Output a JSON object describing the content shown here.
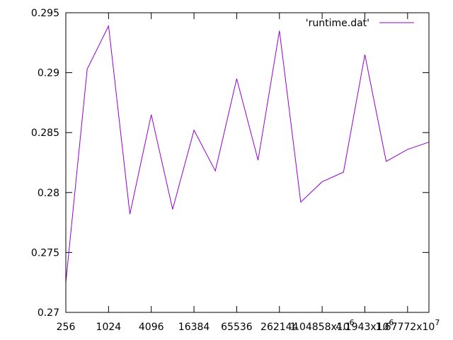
{
  "chart_data": {
    "type": "line",
    "title": "",
    "xlabel": "",
    "ylabel": "",
    "x_scale": "log2",
    "xlim": [
      256,
      33554432
    ],
    "ylim": [
      0.27,
      0.295
    ],
    "grid": false,
    "legend_position": "top-right",
    "x_tick_labels": [
      "256",
      "1024",
      "4096",
      "16384",
      "65536",
      "262144",
      "1.04858x10^6",
      "4.1943x10^6",
      "1.67772x10^7"
    ],
    "x_tick_values": [
      256,
      1024,
      4096,
      16384,
      65536,
      262144,
      1048576,
      4194304,
      16777216
    ],
    "y_tick_labels": [
      "0.27",
      "0.275",
      "0.28",
      "0.285",
      "0.29",
      "0.295"
    ],
    "y_tick_values": [
      0.27,
      0.275,
      0.28,
      0.285,
      0.29,
      0.295
    ],
    "series": [
      {
        "name": "'runtime.dat'",
        "color": "#9400d3",
        "x": [
          256,
          512,
          1024,
          2048,
          4096,
          8192,
          16384,
          32768,
          65536,
          131072,
          262144,
          524288,
          1048576,
          2097152,
          4194304,
          8388608,
          16777216,
          33554432
        ],
        "y": [
          0.2725,
          0.2903,
          0.2939,
          0.2782,
          0.2865,
          0.2786,
          0.2852,
          0.2818,
          0.2895,
          0.2827,
          0.2935,
          0.2792,
          0.2809,
          0.2817,
          0.2915,
          0.2826,
          0.2836,
          0.2842
        ]
      }
    ]
  }
}
